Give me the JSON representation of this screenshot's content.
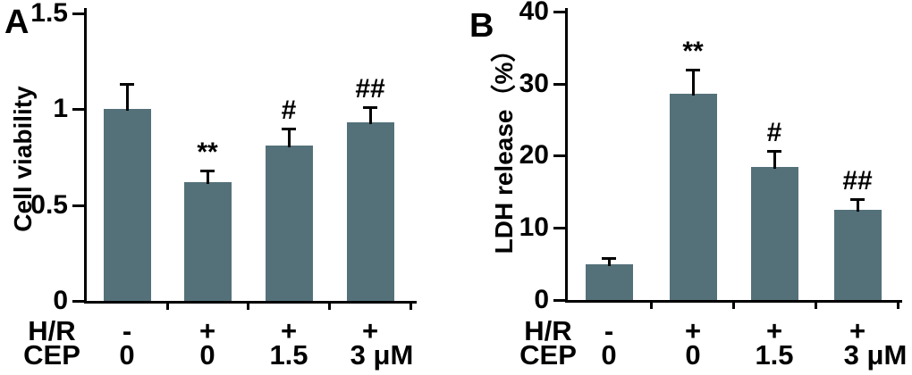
{
  "figure": {
    "description_labels": {
      "hr_row": "H/R",
      "cep_row": "CEP"
    },
    "bar_color": "#54717A",
    "axis_color": "#000000",
    "text_color": "#000000"
  },
  "chart_data": [
    {
      "type": "bar",
      "panel_label": "A",
      "title": "",
      "xlabel": "",
      "ylabel": "Cell viability",
      "ylim": [
        0,
        1.5
      ],
      "ytick_values": [
        0,
        0.5,
        1,
        1.5
      ],
      "ytick_labels": [
        "0",
        "0.5",
        "1",
        "1.5"
      ],
      "grid": false,
      "legend": null,
      "x_axis_rows": [
        {
          "label": "H/R",
          "values": [
            "-",
            "+",
            "+",
            "+"
          ]
        },
        {
          "label": "CEP",
          "values": [
            "0",
            "0",
            "1.5",
            "3 μM"
          ]
        }
      ],
      "values": [
        1.0,
        0.62,
        0.81,
        0.93
      ],
      "errors": [
        0.13,
        0.06,
        0.09,
        0.08
      ],
      "sig_markers": [
        "",
        "**",
        "#",
        "##"
      ],
      "bar_color": "#54717A"
    },
    {
      "type": "bar",
      "panel_label": "B",
      "title": "",
      "xlabel": "",
      "ylabel": "LDH release（%）",
      "ylim": [
        0,
        40
      ],
      "ytick_values": [
        0,
        10,
        20,
        30,
        40
      ],
      "ytick_labels": [
        "0",
        "10",
        "20",
        "30",
        "40"
      ],
      "grid": false,
      "legend": null,
      "x_axis_rows": [
        {
          "label": "H/R",
          "values": [
            "-",
            "+",
            "+",
            "+"
          ]
        },
        {
          "label": "CEP",
          "values": [
            "0",
            "0",
            "1.5",
            "3 μM"
          ]
        }
      ],
      "values": [
        5.0,
        28.6,
        18.5,
        12.5
      ],
      "errors": [
        0.8,
        3.3,
        2.2,
        1.5
      ],
      "sig_markers": [
        "",
        "**",
        "#",
        "##"
      ],
      "bar_color": "#54717A"
    }
  ]
}
